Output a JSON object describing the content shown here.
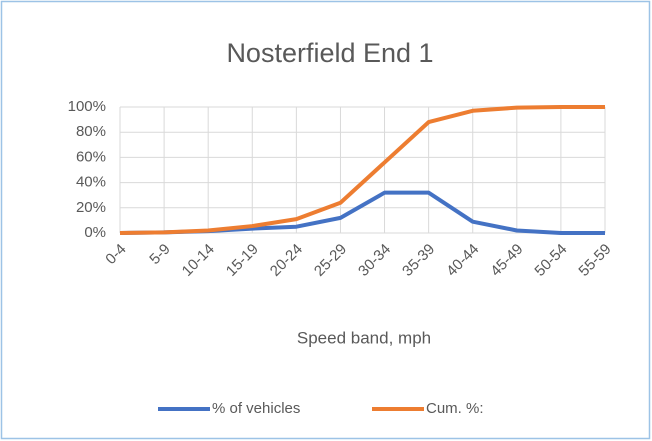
{
  "chart_data": {
    "type": "line",
    "title": "Nosterfield End 1",
    "x_label": "Speed band, mph",
    "categories": [
      "0-4",
      "5-9",
      "10-14",
      "15-19",
      "20-24",
      "25-29",
      "30-34",
      "35-39",
      "40-44",
      "45-49",
      "50-54",
      "55-59"
    ],
    "series": [
      {
        "name": "% of vehicles",
        "color": "#4472c4",
        "values": [
          0,
          0.5,
          1.5,
          3.5,
          5,
          12,
          32,
          32,
          9,
          2,
          0,
          0
        ]
      },
      {
        "name": "Cum. %:",
        "color": "#ed7d31",
        "values": [
          0,
          0.5,
          2,
          5.5,
          11,
          24,
          56,
          88,
          97,
          99.5,
          100,
          100
        ]
      }
    ],
    "ylim": [
      0,
      100
    ],
    "yticks": [
      {
        "value": 0,
        "label": "0%"
      },
      {
        "value": 20,
        "label": "20%"
      },
      {
        "value": 40,
        "label": "40%"
      },
      {
        "value": 60,
        "label": "60%"
      },
      {
        "value": 80,
        "label": "80%"
      },
      {
        "value": 100,
        "label": "100%"
      }
    ],
    "grid": true,
    "legend": "bottom"
  }
}
